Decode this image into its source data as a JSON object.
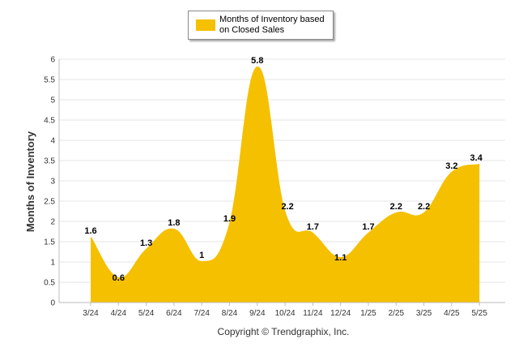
{
  "chart_data": {
    "type": "area",
    "categories": [
      "3/24",
      "4/24",
      "5/24",
      "6/24",
      "7/24",
      "8/24",
      "9/24",
      "10/24",
      "11/24",
      "12/24",
      "1/25",
      "2/25",
      "3/25",
      "4/25",
      "5/25"
    ],
    "series": [
      {
        "name": "Months of Inventory based on Closed Sales",
        "values": [
          1.6,
          0.6,
          1.3,
          1.8,
          1,
          1.9,
          5.8,
          2.2,
          1.7,
          1.1,
          1.7,
          2.2,
          2.2,
          3.2,
          3.4
        ],
        "color": "#F5C000"
      }
    ],
    "data_labels": [
      "1.6",
      "0.6",
      "1.3",
      "1.8",
      "1",
      "1.9",
      "5.8",
      "2.2",
      "1.7",
      "1.1",
      "1.7",
      "2.2",
      "2.2",
      "3.2",
      "3.4"
    ],
    "ylabel": "Months of Inventory",
    "ylim": [
      0,
      6
    ],
    "yticks": [
      "0",
      "0.5",
      "1",
      "1.5",
      "2",
      "2.5",
      "3",
      "3.5",
      "4",
      "4.5",
      "5",
      "5.5",
      "6"
    ],
    "grid": true,
    "legend_position": "top-center"
  },
  "legend": {
    "label": "Months of Inventory based on Closed Sales"
  },
  "footer": {
    "copyright": "Copyright © Trendgraphix, Inc."
  }
}
